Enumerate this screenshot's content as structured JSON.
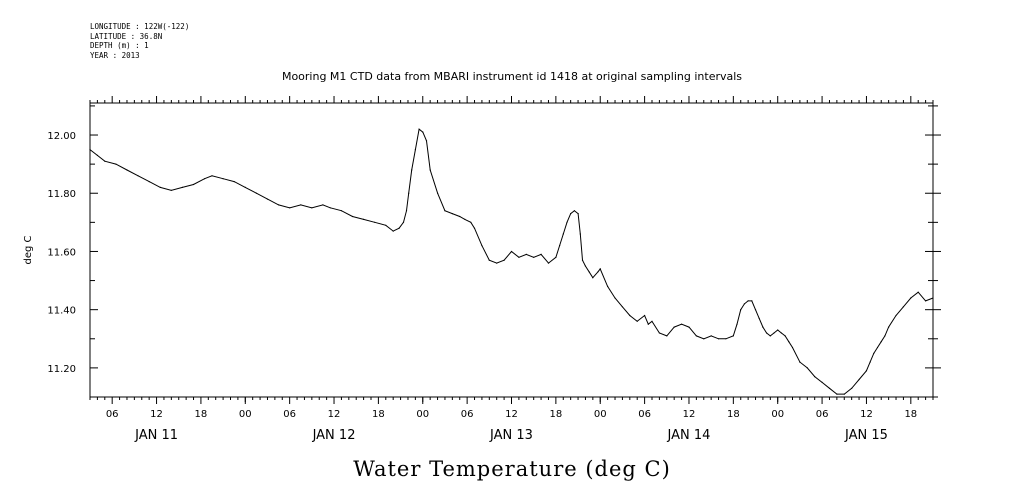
{
  "meta": {
    "longitude": "LONGITUDE : 122W(-122)",
    "latitude": "LATITUDE : 36.8N",
    "depth": "DEPTH (m) : 1",
    "year": "YEAR : 2013"
  },
  "chart_data": {
    "type": "line",
    "title": "Mooring M1 CTD data from MBARI instrument id 1418 at original sampling intervals",
    "ylabel": "deg C",
    "bottom_label": "Water Temperature (deg C)",
    "ylim": [
      11.1,
      12.11
    ],
    "xlim": [
      3,
      117
    ],
    "x_units": "hours since JAN 11 00:00",
    "yticks": [
      {
        "value": 11.2,
        "label": "11.20"
      },
      {
        "value": 11.4,
        "label": "11.40"
      },
      {
        "value": 11.6,
        "label": "11.60"
      },
      {
        "value": 11.8,
        "label": "11.80"
      },
      {
        "value": 12.0,
        "label": "12.00"
      }
    ],
    "xticks": [
      {
        "value": 6,
        "label": "06"
      },
      {
        "value": 12,
        "label": "12"
      },
      {
        "value": 18,
        "label": "18"
      },
      {
        "value": 24,
        "label": "00"
      },
      {
        "value": 30,
        "label": "06"
      },
      {
        "value": 36,
        "label": "12"
      },
      {
        "value": 42,
        "label": "18"
      },
      {
        "value": 48,
        "label": "00"
      },
      {
        "value": 54,
        "label": "06"
      },
      {
        "value": 60,
        "label": "12"
      },
      {
        "value": 66,
        "label": "18"
      },
      {
        "value": 72,
        "label": "00"
      },
      {
        "value": 78,
        "label": "06"
      },
      {
        "value": 84,
        "label": "12"
      },
      {
        "value": 90,
        "label": "18"
      },
      {
        "value": 96,
        "label": "00"
      },
      {
        "value": 102,
        "label": "06"
      },
      {
        "value": 108,
        "label": "12"
      },
      {
        "value": 114,
        "label": "18"
      }
    ],
    "day_labels": [
      {
        "value": 12,
        "label": "JAN 11"
      },
      {
        "value": 36,
        "label": "JAN 12"
      },
      {
        "value": 60,
        "label": "JAN 13"
      },
      {
        "value": 84,
        "label": "JAN 14"
      },
      {
        "value": 108,
        "label": "JAN 15"
      }
    ],
    "series": [
      {
        "x": [
          3.0,
          4.0,
          5.0,
          6.5,
          8.0,
          9.5,
          11.0,
          12.5,
          14.0,
          15.5,
          17.0,
          18.5,
          19.5,
          21.0,
          22.5,
          24.0,
          25.5,
          27.0,
          28.5,
          30.0,
          31.5,
          33.0,
          34.5,
          35.5,
          37.0,
          38.5,
          40.0,
          41.5,
          43.0,
          44.0,
          44.8,
          45.4,
          45.8,
          46.1,
          46.5,
          47.0,
          47.5,
          48.0,
          48.5,
          49.0,
          50.0,
          51.0,
          52.0,
          53.0,
          53.7,
          54.5,
          55.0,
          56.0,
          57.0,
          58.0,
          59.0,
          60.0,
          61.0,
          62.0,
          63.0,
          64.0,
          65.0,
          66.0,
          66.5,
          67.0,
          67.5,
          68.0,
          68.5,
          69.0,
          69.3,
          69.6,
          70.0,
          70.5,
          71.0,
          71.7,
          72.0,
          73.0,
          74.0,
          75.0,
          76.0,
          77.0,
          78.0,
          78.5,
          79.0,
          80.0,
          81.0,
          82.0,
          83.0,
          84.0,
          85.0,
          86.0,
          87.0,
          88.0,
          89.0,
          90.0,
          90.5,
          91.0,
          91.5,
          92.0,
          92.5,
          93.0,
          93.5,
          94.0,
          94.5,
          95.0,
          95.5,
          96.0,
          96.5,
          97.0,
          97.5,
          98.0,
          99.0,
          100.0,
          101.0,
          102.0,
          103.0,
          104.0,
          105.0,
          106.0,
          107.0,
          108.0,
          108.5,
          109.0,
          109.5,
          110.0,
          110.5,
          111.0,
          112.0,
          113.0,
          114.0,
          115.0,
          116.0,
          117.0
        ],
        "values": [
          11.95,
          11.93,
          11.91,
          11.9,
          11.88,
          11.86,
          11.84,
          11.82,
          11.81,
          11.82,
          11.83,
          11.85,
          11.86,
          11.85,
          11.84,
          11.82,
          11.8,
          11.78,
          11.76,
          11.75,
          11.76,
          11.75,
          11.76,
          11.75,
          11.74,
          11.72,
          11.71,
          11.7,
          11.69,
          11.67,
          11.68,
          11.7,
          11.74,
          11.8,
          11.88,
          11.95,
          12.02,
          12.01,
          11.98,
          11.88,
          11.8,
          11.74,
          11.73,
          11.72,
          11.71,
          11.7,
          11.68,
          11.62,
          11.57,
          11.56,
          11.57,
          11.6,
          11.58,
          11.59,
          11.58,
          11.59,
          11.56,
          11.58,
          11.62,
          11.66,
          11.7,
          11.73,
          11.74,
          11.73,
          11.66,
          11.57,
          11.55,
          11.53,
          11.51,
          11.53,
          11.54,
          11.48,
          11.44,
          11.41,
          11.38,
          11.36,
          11.38,
          11.35,
          11.36,
          11.32,
          11.31,
          11.34,
          11.35,
          11.34,
          11.31,
          11.3,
          11.31,
          11.3,
          11.3,
          11.31,
          11.35,
          11.4,
          11.42,
          11.43,
          11.43,
          11.4,
          11.37,
          11.34,
          11.32,
          11.31,
          11.32,
          11.33,
          11.32,
          11.31,
          11.29,
          11.27,
          11.22,
          11.2,
          11.17,
          11.15,
          11.13,
          11.11,
          11.11,
          11.13,
          11.16,
          11.19,
          11.22,
          11.25,
          11.27,
          11.29,
          11.31,
          11.34,
          11.38,
          11.41,
          11.44,
          11.46,
          11.43,
          11.44
        ]
      }
    ]
  }
}
